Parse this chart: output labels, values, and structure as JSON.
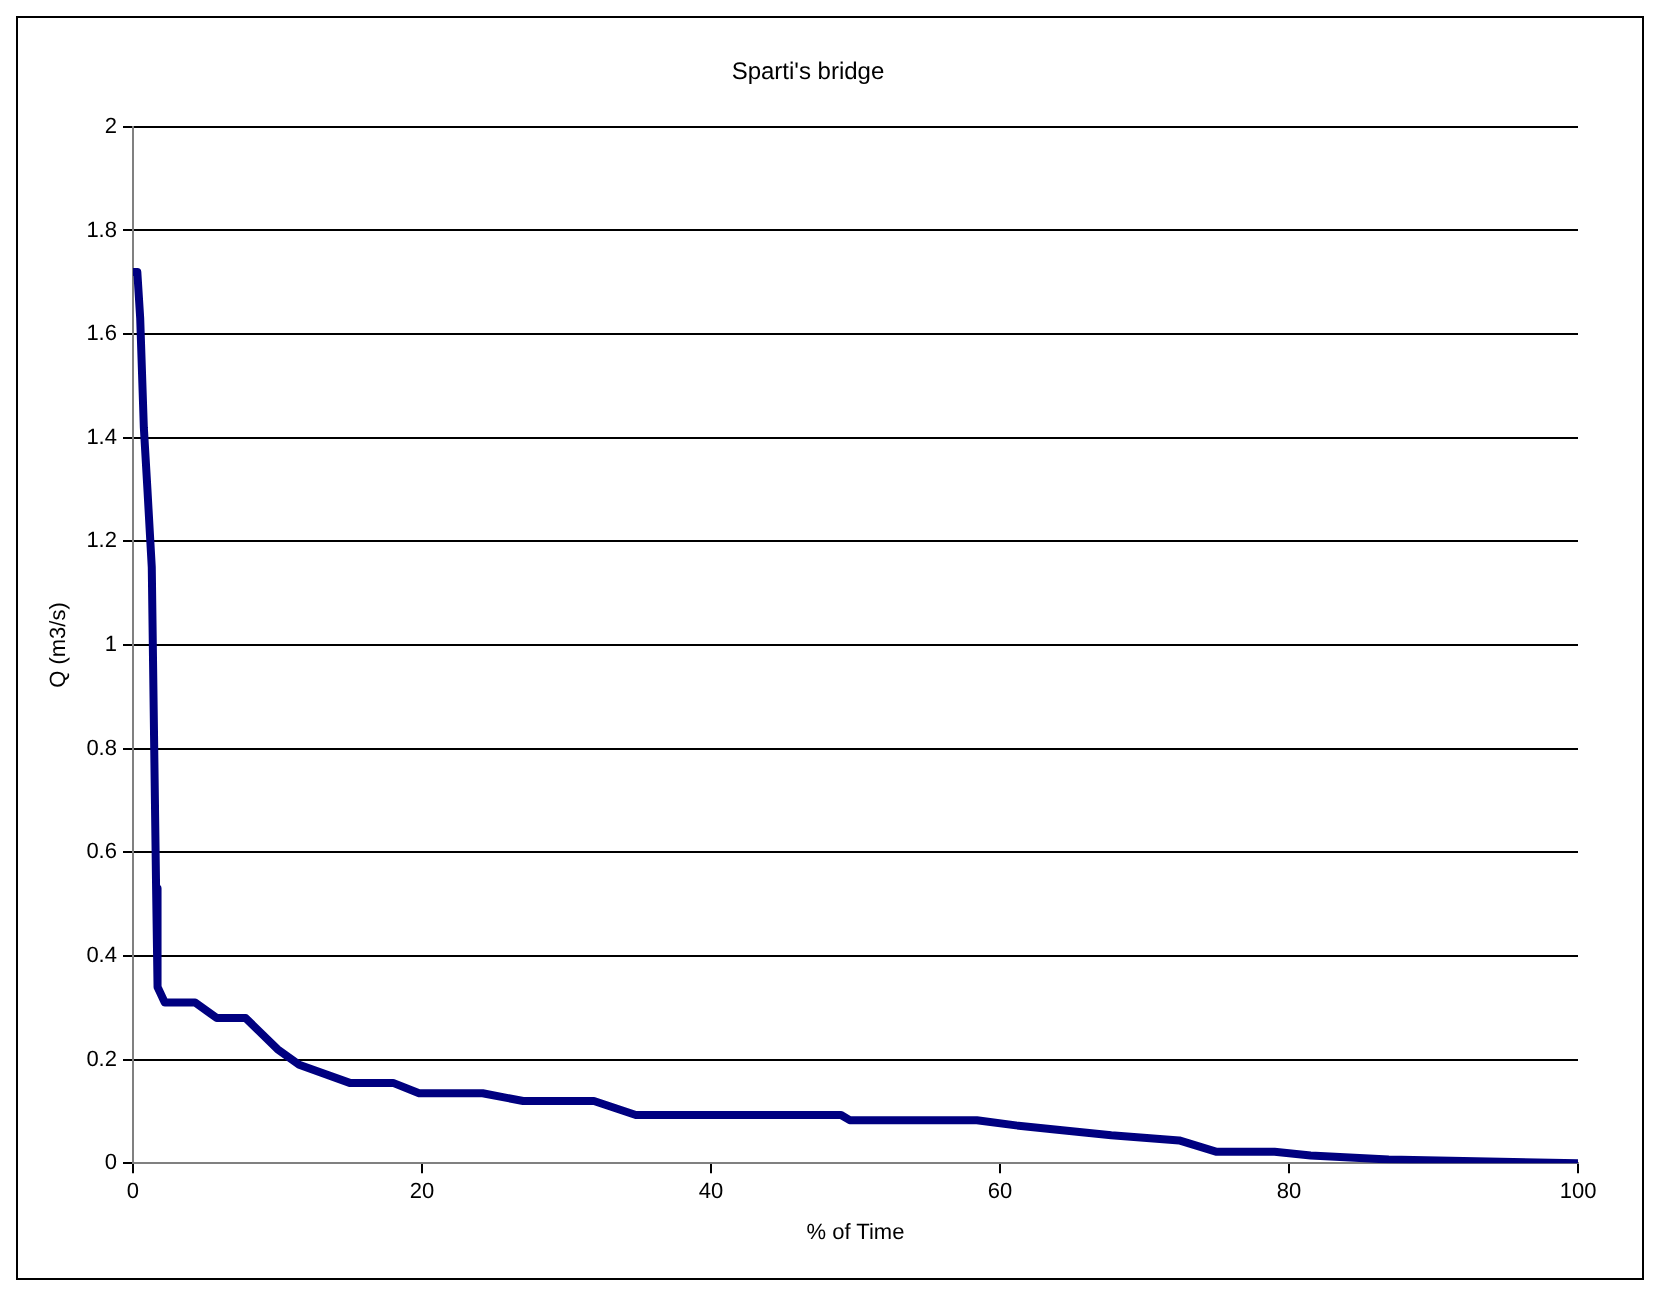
{
  "chart_data": {
    "type": "line",
    "title": "Sparti's bridge",
    "xlabel": "% of Time",
    "ylabel": "Q (m3/s)",
    "xlim": [
      0,
      100
    ],
    "xticks": [
      0,
      20,
      40,
      60,
      80,
      100
    ],
    "ylim": [
      0,
      2
    ],
    "yticks": [
      0,
      0.2,
      0.4,
      0.6,
      0.8,
      1,
      1.2,
      1.4,
      1.6,
      1.8,
      2
    ],
    "grid": "y",
    "legend": false,
    "marker": "none",
    "line_style": "solid",
    "series": [
      {
        "color": "#000080",
        "x": [
          0,
          0.3,
          0.5,
          0.75,
          1.0,
          1.3,
          1.6,
          1.7,
          2.2,
          4.3,
          5.8,
          7.8,
          10,
          11.5,
          15,
          18,
          19.8,
          24.2,
          27,
          31.9,
          34.8,
          49,
          49.6,
          58.4,
          61.1,
          63.8,
          67.7,
          72.4,
          75,
          79,
          81.5,
          86.9,
          100
        ],
        "values": [
          1.72,
          1.72,
          1.63,
          1.42,
          1.3,
          1.15,
          0.53,
          0.34,
          0.31,
          0.31,
          0.28,
          0.28,
          0.22,
          0.19,
          0.155,
          0.155,
          0.135,
          0.135,
          0.12,
          0.12,
          0.093,
          0.093,
          0.083,
          0.083,
          0.073,
          0.065,
          0.054,
          0.044,
          0.022,
          0.022,
          0.015,
          0.007,
          0
        ]
      }
    ]
  }
}
